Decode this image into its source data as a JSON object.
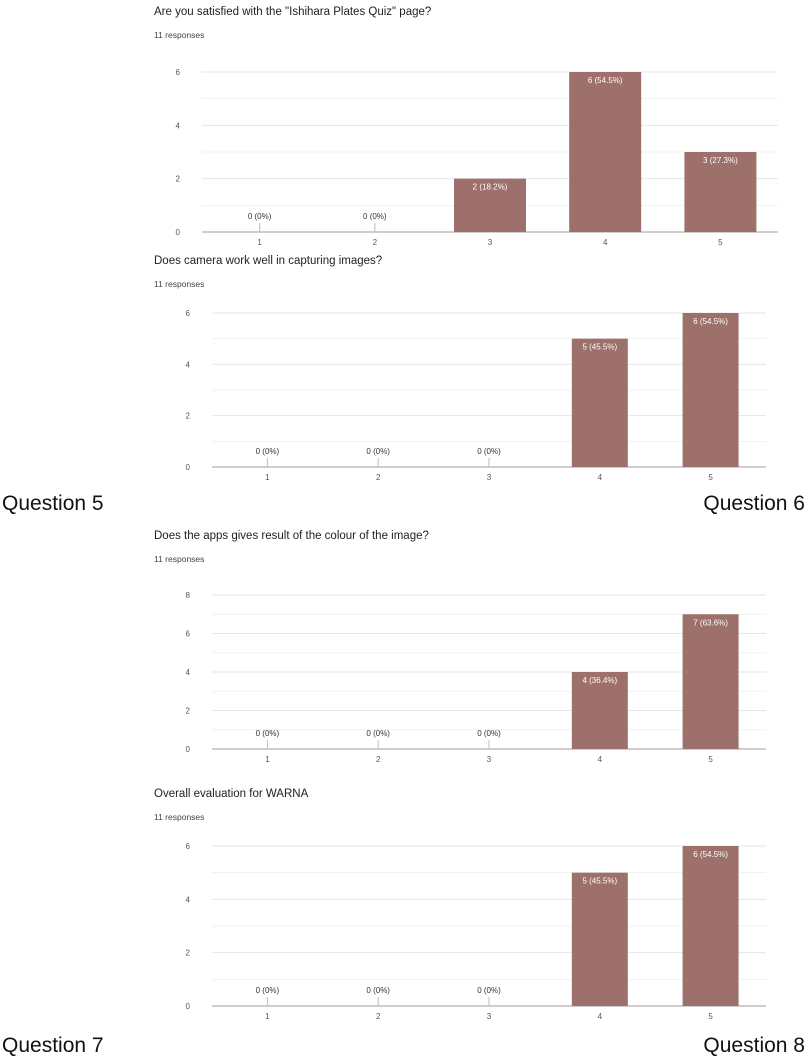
{
  "captions": {
    "q5": "Question 5",
    "q6": "Question 6",
    "q7": "Question 7",
    "q8": "Question 8"
  },
  "colors": {
    "bar": "#9d706b",
    "grid": "#e6e6e6",
    "axis": "#9e9e9e",
    "text": "#222222"
  },
  "chart_data": [
    {
      "type": "bar",
      "title": "Are you satisfied with the  \"Ishihara Plates Quiz\" page?",
      "subtitle": "11 responses",
      "categories": [
        "1",
        "2",
        "3",
        "4",
        "5"
      ],
      "values": [
        0,
        0,
        2,
        6,
        3
      ],
      "labels": [
        "0 (0%)",
        "0 (0%)",
        "2 (18.2%)",
        "6 (54.5%)",
        "3 (27.3%)"
      ],
      "yticks": [
        0,
        2,
        4,
        6
      ],
      "ylim": [
        0,
        6
      ],
      "grid": true
    },
    {
      "type": "bar",
      "title": "Does camera work well in capturing images?",
      "subtitle": "11 responses",
      "categories": [
        "1",
        "2",
        "3",
        "4",
        "5"
      ],
      "values": [
        0,
        0,
        0,
        5,
        6
      ],
      "labels": [
        "0 (0%)",
        "0 (0%)",
        "0 (0%)",
        "5 (45.5%)",
        "6 (54.5%)"
      ],
      "yticks": [
        0,
        2,
        4,
        6
      ],
      "ylim": [
        0,
        6
      ],
      "grid": true
    },
    {
      "type": "bar",
      "title": "Does the apps gives result of the colour of the image?",
      "subtitle": "11 responses",
      "categories": [
        "1",
        "2",
        "3",
        "4",
        "5"
      ],
      "values": [
        0,
        0,
        0,
        4,
        7
      ],
      "labels": [
        "0 (0%)",
        "0 (0%)",
        "0 (0%)",
        "4 (36.4%)",
        "7 (63.6%)"
      ],
      "yticks": [
        0,
        2,
        4,
        6,
        8
      ],
      "ylim": [
        0,
        8
      ],
      "grid": true
    },
    {
      "type": "bar",
      "title": "Overall evaluation for WARNA",
      "subtitle": "11 responses",
      "categories": [
        "1",
        "2",
        "3",
        "4",
        "5"
      ],
      "values": [
        0,
        0,
        0,
        5,
        6
      ],
      "labels": [
        "0 (0%)",
        "0 (0%)",
        "0 (0%)",
        "5 (45.5%)",
        "6 (54.5%)"
      ],
      "yticks": [
        0,
        2,
        4,
        6
      ],
      "ylim": [
        0,
        6
      ],
      "grid": true
    }
  ]
}
